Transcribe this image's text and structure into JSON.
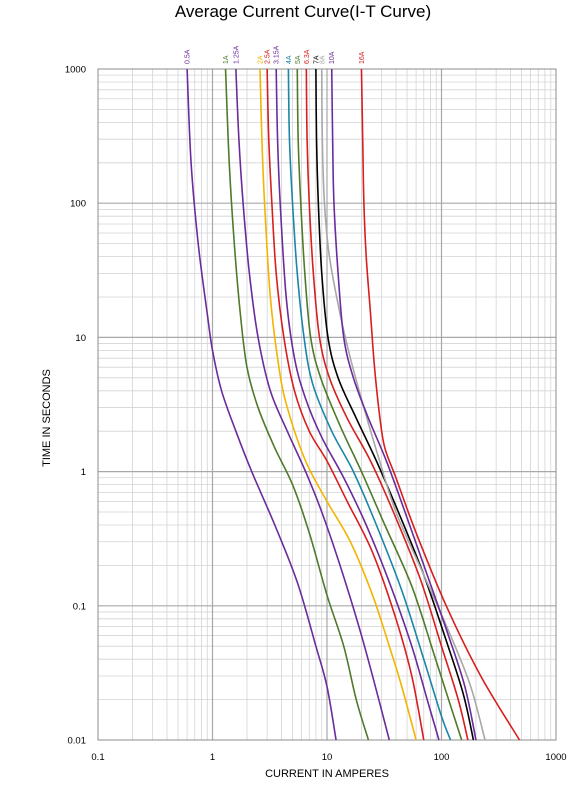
{
  "chart_data": {
    "type": "line",
    "title": "Average Current Curve(I-T Curve)",
    "xlabel": "CURRENT IN AMPERES",
    "ylabel": "TIME IN SECONDS",
    "x_scale": "log",
    "y_scale": "log",
    "xlim": [
      0.1,
      1000
    ],
    "ylim": [
      0.01,
      1000
    ],
    "x_ticks": [
      "0.1",
      "1",
      "10",
      "100",
      "1000"
    ],
    "y_ticks": [
      "1000",
      "100",
      "10",
      "1",
      "0.1",
      "0.01"
    ],
    "grid": true,
    "legend": "series labels rotated above top edge of plot",
    "series": [
      {
        "name": "0.5A",
        "color": "#6a2c9c",
        "points": [
          [
            0.6,
            1000
          ],
          [
            0.65,
            200
          ],
          [
            0.75,
            50
          ],
          [
            0.9,
            15
          ],
          [
            1.0,
            8
          ],
          [
            1.2,
            4
          ],
          [
            1.6,
            2
          ],
          [
            2.2,
            1
          ],
          [
            3.5,
            0.4
          ],
          [
            5.5,
            0.15
          ],
          [
            8,
            0.05
          ],
          [
            10,
            0.025
          ],
          [
            12,
            0.01
          ]
        ]
      },
      {
        "name": "1A",
        "color": "#4f7a2a",
        "points": [
          [
            1.3,
            1000
          ],
          [
            1.4,
            200
          ],
          [
            1.55,
            50
          ],
          [
            1.75,
            15
          ],
          [
            2.0,
            6
          ],
          [
            2.5,
            3
          ],
          [
            3.5,
            1.5
          ],
          [
            5,
            0.8
          ],
          [
            7,
            0.35
          ],
          [
            10,
            0.12
          ],
          [
            14,
            0.05
          ],
          [
            18,
            0.02
          ],
          [
            23,
            0.01
          ]
        ]
      },
      {
        "name": "1.25A",
        "color": "#6a2c9c",
        "points": [
          [
            1.6,
            1000
          ],
          [
            1.7,
            300
          ],
          [
            1.85,
            100
          ],
          [
            2.1,
            30
          ],
          [
            2.5,
            10
          ],
          [
            3.2,
            4
          ],
          [
            4.5,
            2
          ],
          [
            6.5,
            1
          ],
          [
            9,
            0.5
          ],
          [
            13,
            0.2
          ],
          [
            19,
            0.07
          ],
          [
            25,
            0.03
          ],
          [
            35,
            0.01
          ]
        ]
      },
      {
        "name": "2A",
        "color": "#f2b400",
        "points": [
          [
            2.6,
            1000
          ],
          [
            2.7,
            300
          ],
          [
            2.85,
            100
          ],
          [
            3.2,
            20
          ],
          [
            3.8,
            6
          ],
          [
            4.5,
            3
          ],
          [
            6.5,
            1.2
          ],
          [
            10,
            0.6
          ],
          [
            16,
            0.3
          ],
          [
            25,
            0.12
          ],
          [
            35,
            0.05
          ],
          [
            45,
            0.025
          ],
          [
            60,
            0.01
          ]
        ]
      },
      {
        "name": "2.5A",
        "color": "#d81e1e",
        "points": [
          [
            3.0,
            1000
          ],
          [
            3.1,
            300
          ],
          [
            3.3,
            100
          ],
          [
            3.6,
            30
          ],
          [
            4.2,
            10
          ],
          [
            5.2,
            4
          ],
          [
            7,
            2
          ],
          [
            10,
            1.2
          ],
          [
            15,
            0.6
          ],
          [
            25,
            0.25
          ],
          [
            40,
            0.08
          ],
          [
            55,
            0.03
          ],
          [
            70,
            0.01
          ]
        ]
      },
      {
        "name": "3.15A",
        "color": "#6a2c9c",
        "points": [
          [
            3.6,
            1000
          ],
          [
            3.7,
            300
          ],
          [
            3.9,
            100
          ],
          [
            4.4,
            20
          ],
          [
            5.2,
            7
          ],
          [
            6.5,
            3.5
          ],
          [
            9,
            1.8
          ],
          [
            14,
            0.9
          ],
          [
            22,
            0.4
          ],
          [
            35,
            0.15
          ],
          [
            55,
            0.05
          ],
          [
            75,
            0.02
          ],
          [
            95,
            0.01
          ]
        ]
      },
      {
        "name": "4A",
        "color": "#1a86a8",
        "points": [
          [
            4.6,
            1000
          ],
          [
            4.7,
            300
          ],
          [
            5.0,
            100
          ],
          [
            5.5,
            30
          ],
          [
            6.3,
            10
          ],
          [
            7.5,
            4.5
          ],
          [
            11,
            2
          ],
          [
            17,
            1
          ],
          [
            27,
            0.4
          ],
          [
            45,
            0.13
          ],
          [
            70,
            0.04
          ],
          [
            100,
            0.015
          ],
          [
            120,
            0.01
          ]
        ]
      },
      {
        "name": "5A",
        "color": "#4f7a2a",
        "points": [
          [
            5.5,
            1000
          ],
          [
            5.6,
            300
          ],
          [
            5.9,
            100
          ],
          [
            6.4,
            30
          ],
          [
            7.2,
            10
          ],
          [
            8.8,
            5
          ],
          [
            13,
            2.2
          ],
          [
            20,
            1
          ],
          [
            32,
            0.4
          ],
          [
            55,
            0.14
          ],
          [
            85,
            0.045
          ],
          [
            120,
            0.018
          ],
          [
            150,
            0.01
          ]
        ]
      },
      {
        "name": "6.3A",
        "color": "#d81e1e",
        "points": [
          [
            6.6,
            1000
          ],
          [
            6.7,
            300
          ],
          [
            7.0,
            100
          ],
          [
            7.6,
            30
          ],
          [
            8.6,
            10
          ],
          [
            10.5,
            5
          ],
          [
            15,
            2.5
          ],
          [
            24,
            1.2
          ],
          [
            38,
            0.5
          ],
          [
            65,
            0.16
          ],
          [
            100,
            0.05
          ],
          [
            140,
            0.02
          ],
          [
            170,
            0.01
          ]
        ]
      },
      {
        "name": "7A",
        "color": "#000000",
        "points": [
          [
            8.0,
            1000
          ],
          [
            8.1,
            300
          ],
          [
            8.4,
            100
          ],
          [
            9.0,
            30
          ],
          [
            10.2,
            10
          ],
          [
            12.5,
            5
          ],
          [
            18,
            2.5
          ],
          [
            27,
            1.2
          ],
          [
            42,
            0.5
          ],
          [
            70,
            0.17
          ],
          [
            110,
            0.055
          ],
          [
            155,
            0.022
          ],
          [
            190,
            0.01
          ]
        ]
      },
      {
        "name": "8A",
        "color": "#a8a8a8",
        "points": [
          [
            9.0,
            1000
          ],
          [
            9.1,
            300
          ],
          [
            9.5,
            100
          ],
          [
            10.5,
            40
          ],
          [
            13,
            15
          ],
          [
            16,
            7
          ],
          [
            21,
            3
          ],
          [
            28,
            1.3
          ],
          [
            40,
            0.5
          ],
          [
            70,
            0.17
          ],
          [
            120,
            0.06
          ],
          [
            180,
            0.025
          ],
          [
            240,
            0.01
          ]
        ]
      },
      {
        "name": "10A",
        "color": "#6a2c9c",
        "points": [
          [
            11,
            1000
          ],
          [
            11.2,
            300
          ],
          [
            11.5,
            100
          ],
          [
            12.5,
            30
          ],
          [
            14,
            10
          ],
          [
            17,
            5
          ],
          [
            23,
            2.5
          ],
          [
            33,
            1.2
          ],
          [
            48,
            0.5
          ],
          [
            75,
            0.17
          ],
          [
            115,
            0.06
          ],
          [
            160,
            0.025
          ],
          [
            200,
            0.01
          ]
        ]
      },
      {
        "name": "16A",
        "color": "#d81e1e",
        "points": [
          [
            20,
            1000
          ],
          [
            20.5,
            300
          ],
          [
            21,
            100
          ],
          [
            22,
            40
          ],
          [
            24,
            15
          ],
          [
            26,
            6
          ],
          [
            29,
            2.5
          ],
          [
            32,
            1.5
          ],
          [
            40,
            0.9
          ],
          [
            60,
            0.35
          ],
          [
            110,
            0.1
          ],
          [
            220,
            0.03
          ],
          [
            480,
            0.01
          ]
        ]
      }
    ]
  }
}
